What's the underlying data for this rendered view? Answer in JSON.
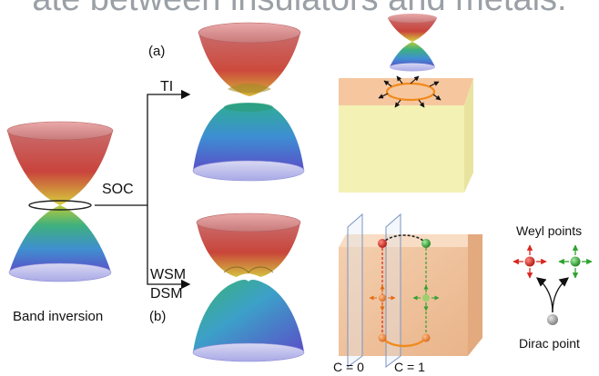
{
  "banner": "ate between insulators and metals.",
  "labels": {
    "panel_a": "(a)",
    "panel_b": "(b)",
    "ti": "TI",
    "soc": "SOC",
    "wsm": "WSM",
    "dsm": "DSM",
    "band_inversion": "Band inversion",
    "weyl_points": "Weyl points",
    "dirac_point": "Dirac point",
    "c0": "C = 0",
    "c1": "C = 1"
  },
  "colors": {
    "band_top": "#c46a6a",
    "band_mid": "#d9d24a",
    "band_green": "#3fae7a",
    "band_bottom": "#5661c9",
    "ti_top_face": "#f6c79f",
    "ti_front_face": "#f4f1b4",
    "wsm_face": "#f2c9a6",
    "weyl_red": "#d8261e",
    "weyl_green": "#2fa12f",
    "dirac_gray": "#9a9a9a",
    "orbit": "#f08a1c"
  }
}
